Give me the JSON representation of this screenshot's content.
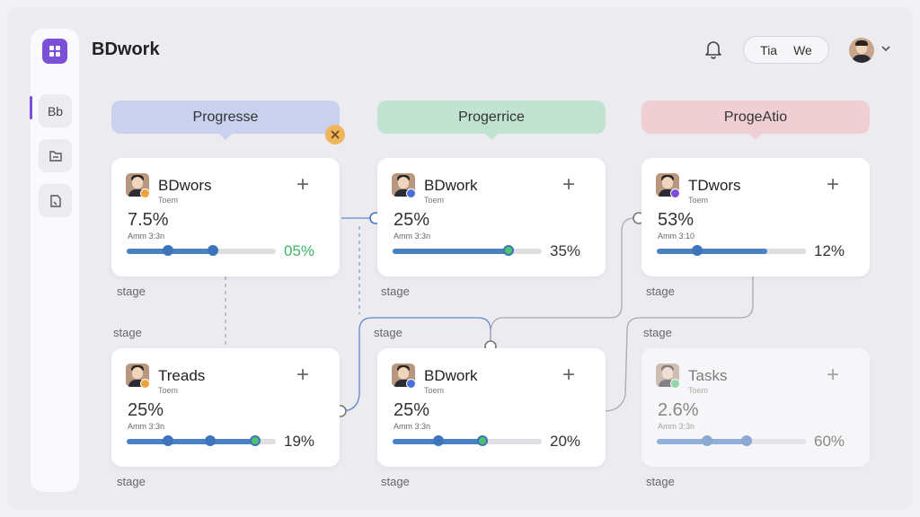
{
  "app": {
    "title": "BDwork",
    "pill": [
      "Tia",
      "We"
    ]
  },
  "sidebar": {
    "items": [
      {
        "label": "Bb",
        "icon": "board-icon"
      },
      {
        "label": "",
        "icon": "folder-icon"
      },
      {
        "label": "",
        "icon": "document-icon"
      }
    ]
  },
  "columns": [
    {
      "label": "Progresse",
      "color": "#c9d1ee"
    },
    {
      "label": "Progerrice",
      "color": "#c0e3d2"
    },
    {
      "label": "ProgeAtio",
      "color": "#f0cfd4"
    }
  ],
  "cards": [
    {
      "name": "BDwors",
      "sub": "Toem",
      "pct": "7.5%",
      "cap": "Amm 3:3n",
      "value": "05%",
      "fill": 0.6,
      "badge_color": "#f0a13a"
    },
    {
      "name": "BDwork",
      "sub": "Toem",
      "pct": "25%",
      "cap": "Amm 3:3n",
      "value": "35%",
      "fill": 0.78,
      "badge_color": "#4a6fd8"
    },
    {
      "name": "TDwors",
      "sub": "Toem",
      "pct": "53%",
      "cap": "Amm 3:10",
      "value": "12%",
      "fill": 0.74,
      "badge_color": "#7b4fd8"
    },
    {
      "name": "Treads",
      "sub": "Toem",
      "pct": "25%",
      "cap": "Amm 3:3n",
      "value": "19%",
      "fill": 0.88,
      "badge_color": "#f0a13a"
    },
    {
      "name": "BDwork",
      "sub": "Toem",
      "pct": "25%",
      "cap": "Amm 3:3n",
      "value": "20%",
      "fill": 0.62,
      "badge_color": "#4a6fd8"
    },
    {
      "name": "Tasks",
      "sub": "Toem",
      "pct": "2.6%",
      "cap": "Amm 3:3n",
      "value": "60%",
      "fill": 0.64,
      "badge_color": "#4ec26c"
    }
  ],
  "stages": [
    "stage",
    "stage",
    "stage",
    "stage",
    "stage",
    "stage",
    "stage",
    "stage",
    "stage"
  ]
}
